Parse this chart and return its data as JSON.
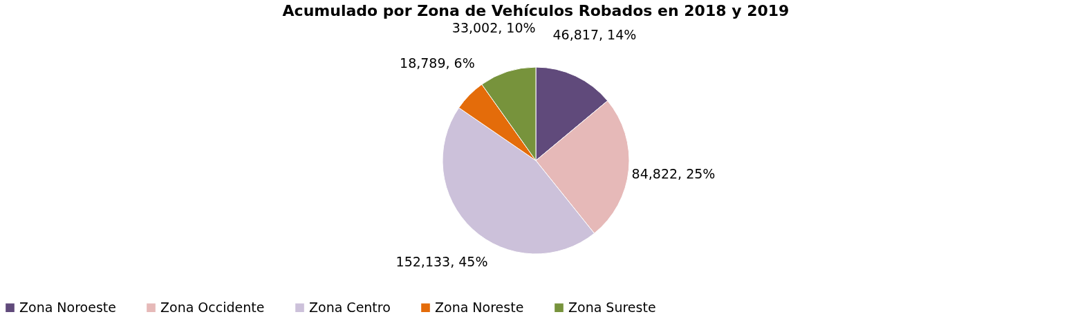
{
  "chart_data": {
    "type": "pie",
    "title": "Acumulado por Zona de Vehículos Robados en 2018 y 2019",
    "categories": [
      "Zona Noroeste",
      "Zona Occidente",
      "Zona Centro",
      "Zona Noreste",
      "Zona Sureste"
    ],
    "values": [
      46817,
      84822,
      152133,
      18789,
      33002
    ],
    "colors": [
      "#604a7b",
      "#e6b9b8",
      "#ccc1da",
      "#e46c0a",
      "#77933c"
    ],
    "value_labels": [
      "46,817, 14%",
      "84,822, 25%",
      "152,133, 45%",
      "18,789, 6%",
      "33,002, 10%"
    ],
    "legend": "bottom"
  }
}
